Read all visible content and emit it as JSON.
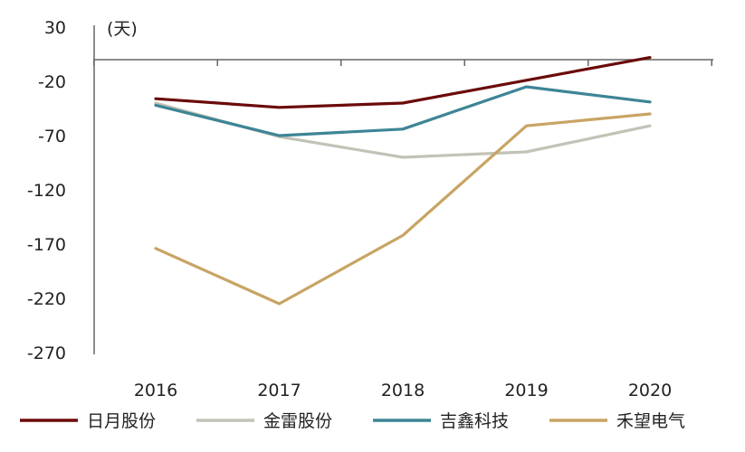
{
  "chart_data": {
    "type": "line",
    "y_unit": "(天)",
    "categories": [
      "2016",
      "2017",
      "2018",
      "2019",
      "2020"
    ],
    "ylim": [
      -270,
      30
    ],
    "yticks": [
      30,
      -20,
      -70,
      -120,
      -170,
      -220,
      -270
    ],
    "grid": false,
    "legend_position": "bottom",
    "series": [
      {
        "name": "日月股份",
        "color": "#6b0a0a",
        "values": [
          -36,
          -44,
          -40,
          -19,
          2
        ]
      },
      {
        "name": "金雷股份",
        "color": "#c2c2b6",
        "values": [
          -40,
          -71,
          -90,
          -85,
          -61
        ]
      },
      {
        "name": "吉鑫科技",
        "color": "#3d8595",
        "values": [
          -42,
          -70,
          -64,
          -25,
          -39
        ]
      },
      {
        "name": "禾望电气",
        "color": "#c8a464",
        "values": [
          -174,
          -225,
          -162,
          -61,
          -50
        ]
      }
    ]
  }
}
